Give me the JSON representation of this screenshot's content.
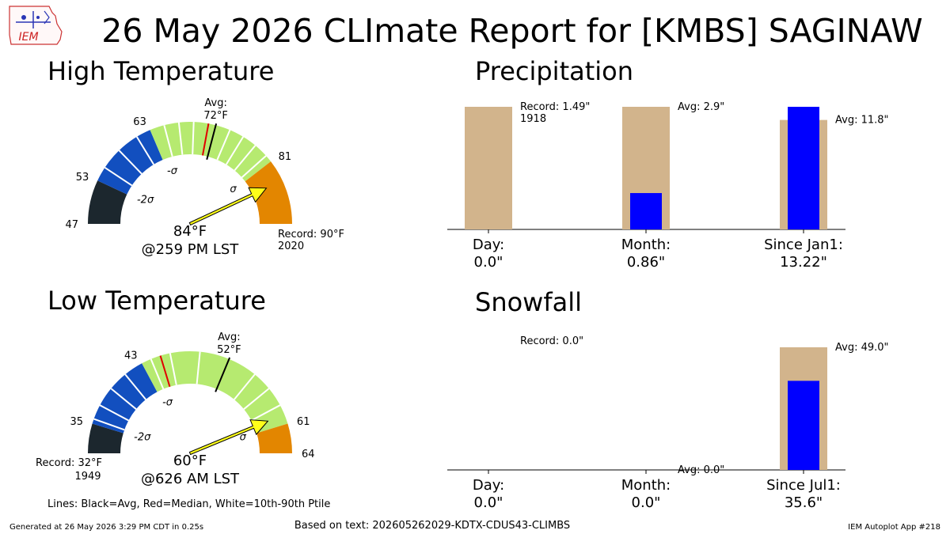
{
  "page": {
    "title": "26 May 2026 CLImate Report for [KMBS] SAGINAW",
    "logo_text": "IEM",
    "legend_note": "Lines: Black=Avg, Red=Median, White=10th-90th Ptile",
    "footer_left": "Generated at 26 May 2026 3:29 PM CDT in 0.25s",
    "footer_center": "Based on text: 202605262029-KDTX-CDUS43-CLIMBS",
    "footer_right": "IEM Autoplot App #218"
  },
  "colors": {
    "dark": "#1c272e",
    "blue": "#124fbf",
    "green": "#b6ea70",
    "orange": "#e38600",
    "median": "#e00000",
    "arrow": "#ffff1a",
    "tan": "#d2b48c",
    "obs_bar": "#0000ff"
  },
  "chart_data": [
    {
      "type": "gauge",
      "title": "High Temperature",
      "range": [
        47,
        90
      ],
      "zones": [
        {
          "from": 47,
          "to": 53,
          "color": "dark"
        },
        {
          "from": 53,
          "to": 63,
          "color": "blue"
        },
        {
          "from": 63,
          "to": 81,
          "color": "green"
        },
        {
          "from": 81,
          "to": 90,
          "color": "orange"
        }
      ],
      "avg": 72,
      "median": 71,
      "ptile_lines": [
        55,
        58,
        61,
        65,
        67,
        69,
        74,
        76,
        78,
        80
      ],
      "tick_labels": [
        "47",
        "53",
        "63",
        "81"
      ],
      "sigma_labels": [
        {
          "value": 53,
          "text": "-2σ"
        },
        {
          "value": 63,
          "text": "-σ"
        },
        {
          "value": 81,
          "text": "σ"
        }
      ],
      "avg_label": [
        "Avg:",
        "72°F"
      ],
      "observed": 84,
      "obs_label": "84°F",
      "time_label": "@259 PM LST",
      "record_label": [
        "Record: 90°F",
        "2020"
      ],
      "record_side": "high"
    },
    {
      "type": "gauge",
      "title": "Low Temperature",
      "range": [
        32,
        64
      ],
      "zones": [
        {
          "from": 32,
          "to": 35,
          "color": "dark"
        },
        {
          "from": 35,
          "to": 43,
          "color": "blue"
        },
        {
          "from": 43,
          "to": 61,
          "color": "green"
        },
        {
          "from": 61,
          "to": 64,
          "color": "orange"
        }
      ],
      "avg": 52,
      "median": 45,
      "ptile_lines": [
        35.5,
        37,
        39,
        41,
        44,
        46,
        49,
        55,
        57,
        59
      ],
      "tick_labels": [
        "35",
        "43",
        "61",
        "64"
      ],
      "sigma_labels": [
        {
          "value": 35,
          "text": "-2σ"
        },
        {
          "value": 43,
          "text": "-σ"
        },
        {
          "value": 61,
          "text": "σ"
        }
      ],
      "avg_label": [
        "Avg:",
        "52°F"
      ],
      "observed": 60,
      "obs_label": "60°F",
      "time_label": "@626 AM LST",
      "record_label": [
        "Record: 32°F",
        "1949"
      ],
      "record_side": "low"
    },
    {
      "type": "bar",
      "title": "Precipitation",
      "categories": [
        "Day:",
        "Month:",
        "Since Jan1:"
      ],
      "value_labels": [
        "0.0\"",
        "0.86\"",
        "13.22\""
      ],
      "values": [
        0.0,
        0.86,
        13.22
      ],
      "reference": [
        1.49,
        2.9,
        11.8
      ],
      "reference_labels": [
        "Record: 1.49\"\n1918",
        "Avg: 2.9\"",
        "Avg: 11.8\""
      ]
    },
    {
      "type": "bar",
      "title": "Snowfall",
      "categories": [
        "Day:",
        "Month:",
        "Since Jul1:"
      ],
      "value_labels": [
        "0.0\"",
        "0.0\"",
        "35.6\""
      ],
      "values": [
        0.0,
        0.0,
        35.6
      ],
      "reference": [
        0.0,
        0.0,
        49.0
      ],
      "reference_labels": [
        "Record: 0.0\"",
        "Avg: 0.0\"",
        "Avg: 49.0\""
      ]
    }
  ]
}
